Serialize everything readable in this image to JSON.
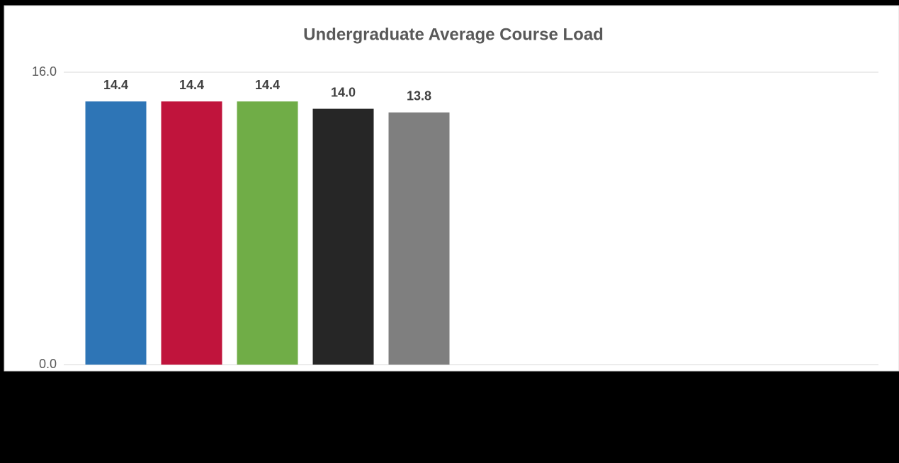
{
  "chart_data": {
    "type": "bar",
    "title": "Undergraduate Average Course Load",
    "categories": [
      null,
      null,
      null,
      null,
      null
    ],
    "series": [
      {
        "values": [
          14.4,
          14.4,
          14.4,
          14.0,
          13.8
        ],
        "value_labels": [
          "14.4",
          "14.4",
          "14.4",
          "14.0",
          "13.8"
        ],
        "colors": [
          "#2e75b6",
          "#c0143c",
          "#70ad47",
          "#262626",
          "#7f7f7f"
        ]
      }
    ],
    "ylim": [
      0,
      16
    ],
    "yticks": [
      {
        "value": 0,
        "label": "0.0"
      },
      {
        "value": 16,
        "label": "16.0"
      }
    ],
    "grid": true
  }
}
